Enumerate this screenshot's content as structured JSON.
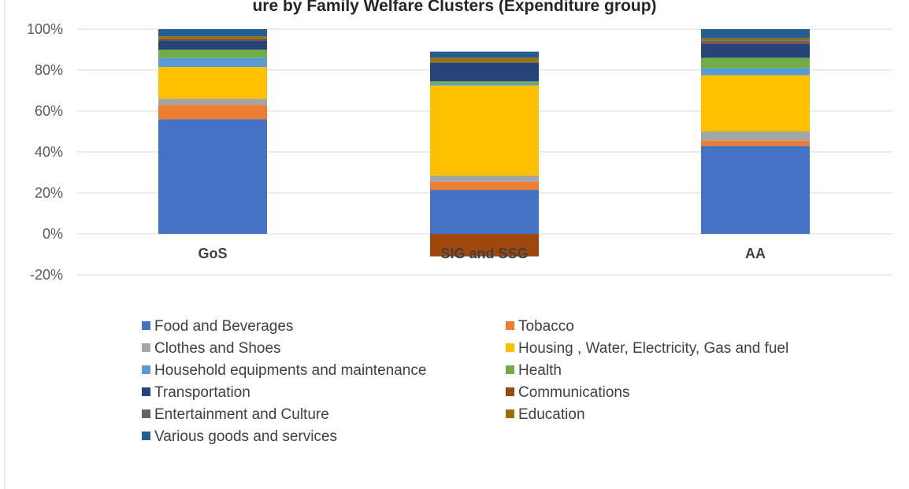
{
  "chart_data": {
    "type": "bar",
    "stacked": true,
    "title": "ure by Family Welfare Clusters (Expenditure group)",
    "categories": [
      "GoS",
      "SIG and SSG",
      "AA"
    ],
    "y_ticks": [
      "100%",
      "80%",
      "60%",
      "40%",
      "20%",
      "0%",
      "-20%"
    ],
    "ylim": [
      -20,
      100
    ],
    "grid": true,
    "legend_position": "bottom",
    "series": [
      {
        "name": "Food and Beverages",
        "color": "#4472C4",
        "values": [
          56,
          21.5,
          43
        ]
      },
      {
        "name": "Tobacco",
        "color": "#ED7D31",
        "values": [
          7,
          4,
          2.5
        ]
      },
      {
        "name": "Clothes and Shoes",
        "color": "#A5A5A5",
        "values": [
          3,
          3,
          4.5
        ]
      },
      {
        "name": "Housing , Water, Electricity, Gas and fuel",
        "color": "#FFC000",
        "values": [
          15.5,
          44,
          27.5
        ]
      },
      {
        "name": "Household equipments and maintenance",
        "color": "#5B9BD5",
        "values": [
          4.5,
          1,
          3.5
        ]
      },
      {
        "name": "Health",
        "color": "#70AD47",
        "values": [
          4,
          1,
          5
        ]
      },
      {
        "name": "Transportation",
        "color": "#264478",
        "values": [
          4.5,
          9,
          7
        ]
      },
      {
        "name": "Communications",
        "color": "#9E480E",
        "values": [
          0.5,
          -11,
          0.5
        ]
      },
      {
        "name": "Entertainment and Culture",
        "color": "#636363",
        "values": [
          0.5,
          0.5,
          1
        ]
      },
      {
        "name": "Education",
        "color": "#997300",
        "values": [
          1,
          2,
          1
        ]
      },
      {
        "name": "Various goods and services",
        "color": "#255E91",
        "values": [
          3.5,
          3,
          4.5
        ]
      }
    ]
  }
}
